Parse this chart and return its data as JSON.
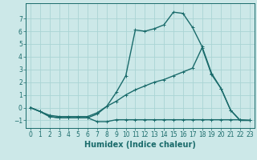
{
  "title": "",
  "xlabel": "Humidex (Indice chaleur)",
  "bg_color": "#cce8e8",
  "line_color": "#1a6b6b",
  "grid_color": "#aad4d4",
  "xlim": [
    -0.5,
    23.5
  ],
  "ylim": [
    -1.6,
    8.2
  ],
  "yticks": [
    -1,
    0,
    1,
    2,
    3,
    4,
    5,
    6,
    7
  ],
  "xticks": [
    0,
    1,
    2,
    3,
    4,
    5,
    6,
    7,
    8,
    9,
    10,
    11,
    12,
    13,
    14,
    15,
    16,
    17,
    18,
    19,
    20,
    21,
    22,
    23
  ],
  "line1_x": [
    0,
    1,
    2,
    3,
    4,
    5,
    6,
    7,
    8,
    9,
    10,
    11,
    12,
    13,
    14,
    15,
    16,
    17,
    18,
    19,
    20,
    21,
    22,
    23
  ],
  "line1_y": [
    0.0,
    -0.3,
    -0.7,
    -0.8,
    -0.8,
    -0.8,
    -0.8,
    -1.1,
    -1.1,
    -0.95,
    -0.95,
    -0.95,
    -0.95,
    -0.95,
    -0.95,
    -0.95,
    -0.95,
    -0.95,
    -0.95,
    -0.95,
    -0.95,
    -0.95,
    -0.95,
    -1.0
  ],
  "line2_x": [
    0,
    1,
    2,
    3,
    4,
    5,
    6,
    7,
    8,
    9,
    10,
    11,
    12,
    13,
    14,
    15,
    16,
    17,
    18,
    19,
    20,
    21,
    22,
    23
  ],
  "line2_y": [
    0.0,
    -0.3,
    -0.7,
    -0.8,
    -0.8,
    -0.8,
    -0.8,
    -0.5,
    0.1,
    1.2,
    2.5,
    6.1,
    6.0,
    6.2,
    6.5,
    7.5,
    7.4,
    6.3,
    4.8,
    2.7,
    1.5,
    -0.2,
    -1.0,
    -1.0
  ],
  "line3_x": [
    0,
    1,
    2,
    3,
    4,
    5,
    6,
    7,
    8,
    9,
    10,
    11,
    12,
    13,
    14,
    15,
    16,
    17,
    18,
    19,
    20,
    21,
    22,
    23
  ],
  "line3_y": [
    0.0,
    -0.3,
    -0.6,
    -0.7,
    -0.7,
    -0.7,
    -0.7,
    -0.4,
    0.1,
    0.5,
    1.0,
    1.4,
    1.7,
    2.0,
    2.2,
    2.5,
    2.8,
    3.1,
    4.7,
    2.6,
    1.5,
    -0.2,
    -1.0,
    -1.0
  ],
  "markersize": 3,
  "linewidth": 1.0,
  "tick_fontsize": 5.5,
  "xlabel_fontsize": 7
}
